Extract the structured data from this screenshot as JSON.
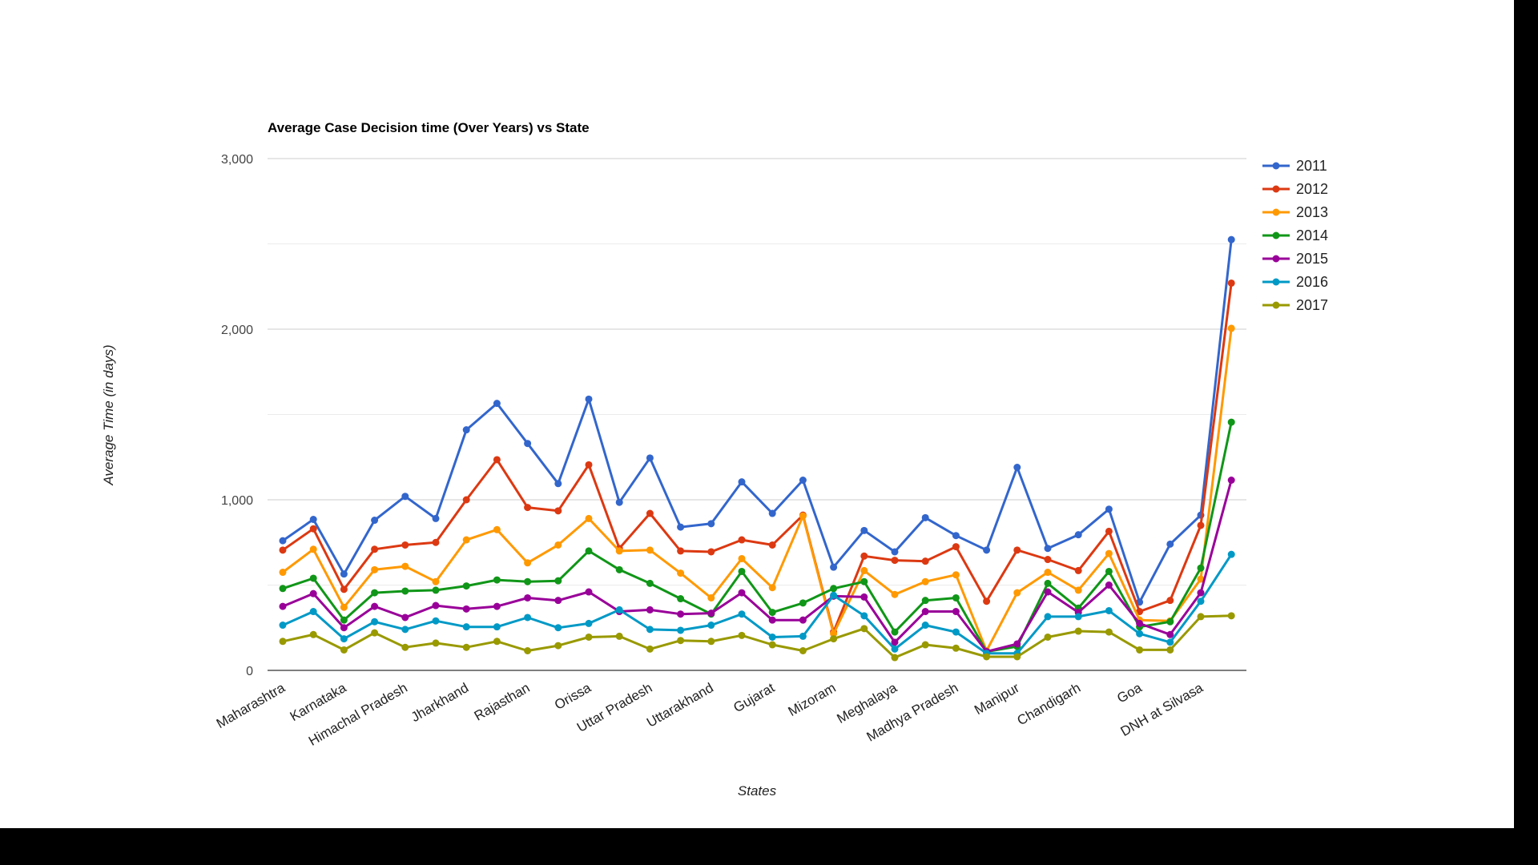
{
  "chart_data": {
    "type": "line",
    "title": "Average Case Decision time (Over Years) vs State",
    "xlabel": "States",
    "ylabel": "Average Time (in days)",
    "ylim": [
      0,
      3000
    ],
    "yticks": [
      0,
      1000,
      2000,
      3000
    ],
    "ytick_labels": [
      "0",
      "1,000",
      "2,000",
      "3,000"
    ],
    "grid": true,
    "legend_position": "right",
    "categories": [
      "Maharashtra",
      "",
      "Karnataka",
      "",
      "Himachal Pradesh",
      "",
      "Jharkhand",
      "",
      "Rajasthan",
      "",
      "Orissa",
      "",
      "Uttar Pradesh",
      "",
      "Uttarakhand",
      "",
      "Gujarat",
      "",
      "Mizoram",
      "",
      "Meghalaya",
      "",
      "Madhya Pradesh",
      "",
      "Manipur",
      "",
      "Chandigarh",
      "",
      "Goa",
      "",
      "DNH at Silvasa",
      ""
    ],
    "series": [
      {
        "name": "2011",
        "color": "#3366cc",
        "values": [
          760,
          885,
          565,
          880,
          1020,
          890,
          1410,
          1565,
          1330,
          1095,
          1590,
          985,
          1245,
          840,
          860,
          1105,
          920,
          1115,
          605,
          820,
          695,
          895,
          790,
          705,
          1190,
          715,
          795,
          945,
          400,
          740,
          910,
          2525
        ]
      },
      {
        "name": "2012",
        "color": "#dc3912",
        "values": [
          705,
          830,
          475,
          710,
          735,
          750,
          1000,
          1235,
          955,
          935,
          1205,
          715,
          920,
          700,
          695,
          765,
          735,
          910,
          225,
          670,
          645,
          640,
          725,
          405,
          705,
          650,
          585,
          815,
          345,
          410,
          850,
          2270
        ]
      },
      {
        "name": "2013",
        "color": "#ff9900",
        "values": [
          575,
          710,
          370,
          590,
          610,
          520,
          765,
          825,
          630,
          735,
          890,
          700,
          705,
          570,
          425,
          655,
          485,
          905,
          215,
          585,
          445,
          520,
          560,
          115,
          455,
          575,
          470,
          685,
          295,
          290,
          535,
          2005
        ]
      },
      {
        "name": "2014",
        "color": "#109618",
        "values": [
          480,
          540,
          295,
          455,
          465,
          470,
          495,
          530,
          520,
          525,
          700,
          590,
          510,
          420,
          330,
          580,
          340,
          395,
          480,
          520,
          225,
          410,
          425,
          110,
          140,
          510,
          365,
          580,
          255,
          285,
          600,
          1455
        ]
      },
      {
        "name": "2015",
        "color": "#990099",
        "values": [
          375,
          450,
          250,
          375,
          310,
          380,
          360,
          375,
          425,
          410,
          460,
          345,
          355,
          330,
          335,
          455,
          295,
          295,
          435,
          430,
          165,
          345,
          345,
          110,
          155,
          460,
          340,
          500,
          275,
          210,
          455,
          1115
        ]
      },
      {
        "name": "2016",
        "color": "#0099c6",
        "values": [
          265,
          345,
          185,
          285,
          240,
          290,
          255,
          255,
          310,
          250,
          275,
          355,
          240,
          235,
          265,
          330,
          195,
          200,
          440,
          320,
          125,
          265,
          225,
          100,
          100,
          315,
          315,
          350,
          215,
          165,
          405,
          680
        ]
      },
      {
        "name": "2017",
        "color": "#999900",
        "values": [
          170,
          210,
          120,
          220,
          135,
          160,
          135,
          170,
          115,
          145,
          195,
          200,
          125,
          175,
          170,
          205,
          150,
          115,
          185,
          245,
          75,
          150,
          130,
          80,
          80,
          195,
          230,
          225,
          120,
          120,
          315,
          320
        ]
      }
    ]
  }
}
